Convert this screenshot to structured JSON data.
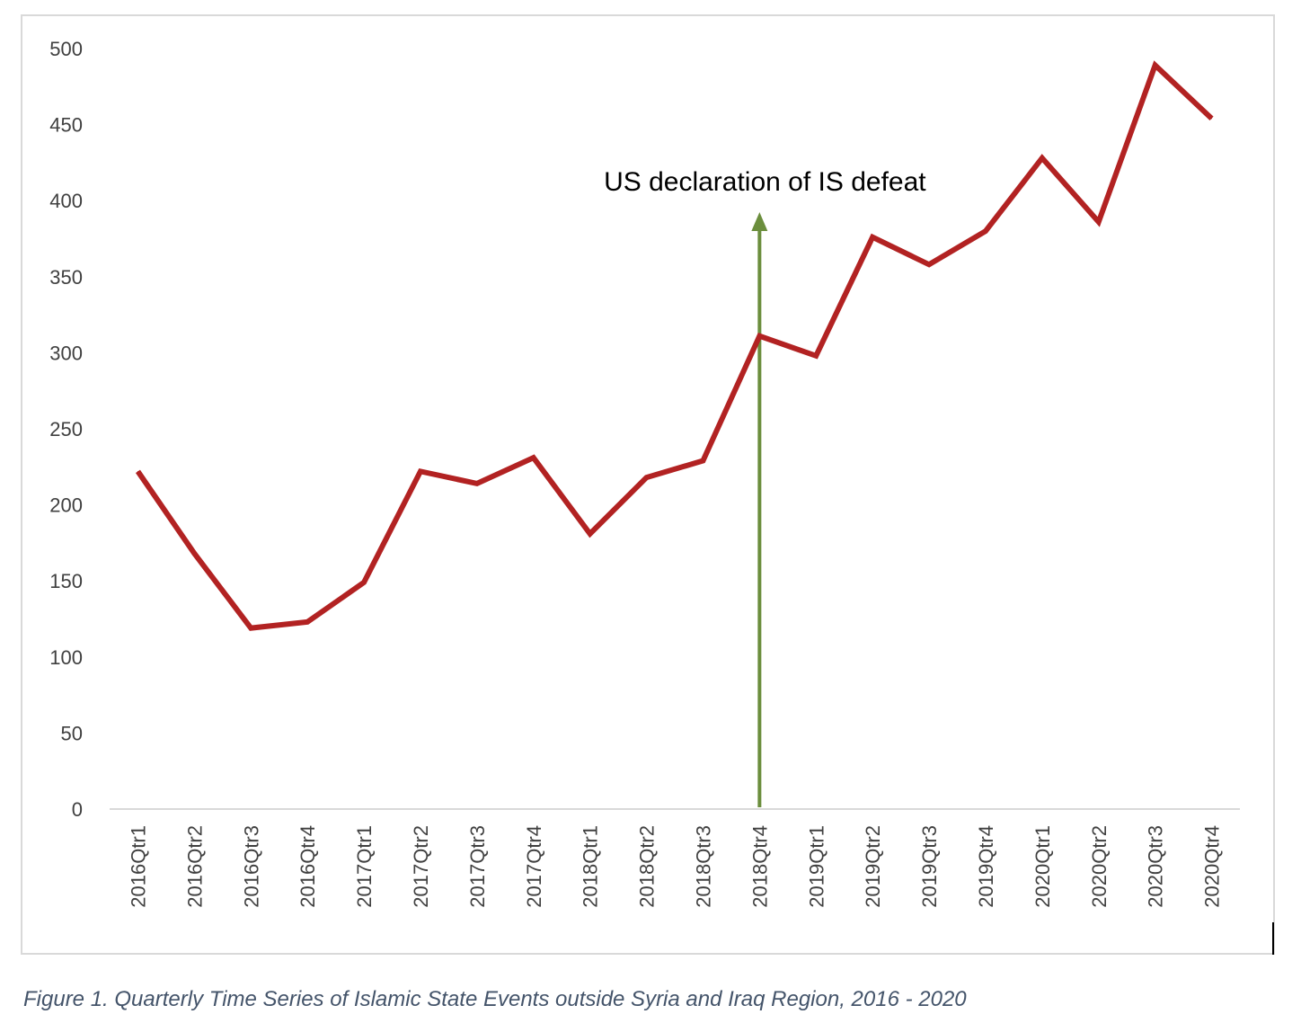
{
  "chart_data": {
    "type": "line",
    "title": "",
    "xlabel": "",
    "ylabel": "",
    "ylim": [
      0,
      500
    ],
    "yticks": [
      0,
      50,
      100,
      150,
      200,
      250,
      300,
      350,
      400,
      450,
      500
    ],
    "grid": false,
    "legend": "none",
    "categories": [
      "2016Qtr1",
      "2016Qtr2",
      "2016Qtr3",
      "2016Qtr4",
      "2017Qtr1",
      "2017Qtr2",
      "2017Qtr3",
      "2017Qtr4",
      "2018Qtr1",
      "2018Qtr2",
      "2018Qtr3",
      "2018Qtr4",
      "2019Qtr1",
      "2019Qtr2",
      "2019Qtr3",
      "2019Qtr4",
      "2020Qtr1",
      "2020Qtr2",
      "2020Qtr3",
      "2020Qtr4"
    ],
    "series": [
      {
        "values": [
          222,
          168,
          119,
          123,
          149,
          222,
          214,
          231,
          181,
          218,
          229,
          311,
          298,
          376,
          358,
          380,
          428,
          386,
          489,
          454
        ],
        "color": "#b22222"
      }
    ],
    "annotations": [
      {
        "text": "US declaration of IS defeat",
        "x": "2018Qtr4",
        "arrow_color": "#6b8e3d"
      }
    ]
  },
  "caption": "Figure 1. Quarterly Time Series of Islamic State Events outside Syria and Iraq Region, 2016 - 2020"
}
